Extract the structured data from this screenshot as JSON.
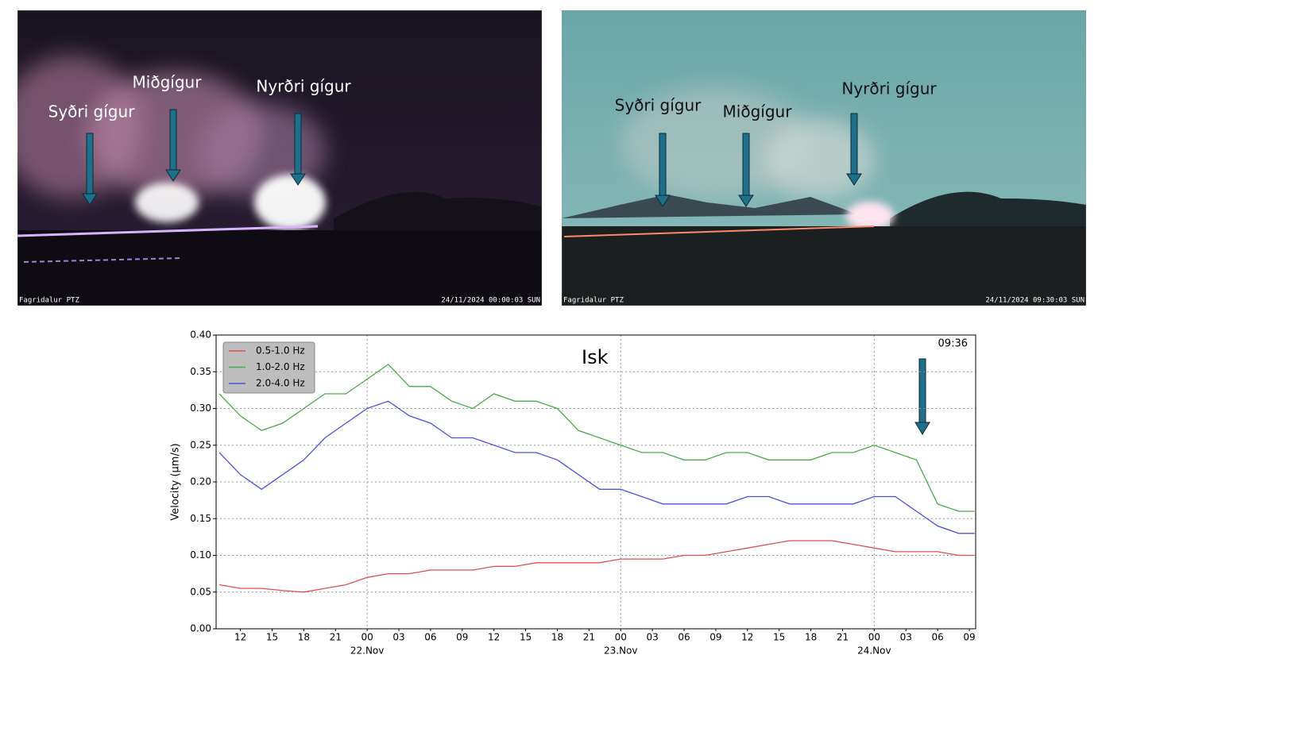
{
  "images": [
    {
      "labels": [
        "Syðri gígur",
        "Miðgígur",
        "Nyrðri gígur"
      ],
      "camera": "Fagridalur PTZ",
      "timestamp": "24/11/2024 00:00:03 SUN"
    },
    {
      "labels": [
        "Syðri gígur",
        "Miðgígur",
        "Nyrðri gígur"
      ],
      "camera": "Fagridalur PTZ",
      "timestamp": "24/11/2024 09:30:03 SUN"
    }
  ],
  "chart_data": {
    "type": "line",
    "title": "Isk",
    "annotation": "09:36",
    "y_label": "Velocity (μm/s)",
    "x": [
      10,
      12,
      14,
      16,
      18,
      20,
      22,
      24,
      26,
      28,
      30,
      32,
      34,
      36,
      38,
      40,
      42,
      44,
      46,
      48,
      50,
      52,
      54,
      56,
      58,
      60,
      62,
      64,
      66,
      68,
      70,
      72,
      74,
      76,
      78,
      80,
      81.5
    ],
    "series": [
      {
        "name": "0.5-1.0 Hz",
        "color": "#e05050",
        "values": [
          0.06,
          0.055,
          0.055,
          0.052,
          0.05,
          0.055,
          0.06,
          0.07,
          0.075,
          0.075,
          0.08,
          0.08,
          0.08,
          0.085,
          0.085,
          0.09,
          0.09,
          0.09,
          0.09,
          0.095,
          0.095,
          0.095,
          0.1,
          0.1,
          0.105,
          0.11,
          0.115,
          0.12,
          0.12,
          0.12,
          0.115,
          0.11,
          0.105,
          0.105,
          0.105,
          0.1,
          0.1
        ]
      },
      {
        "name": "1.0-2.0 Hz",
        "color": "#4caa4c",
        "values": [
          0.32,
          0.29,
          0.27,
          0.28,
          0.3,
          0.32,
          0.32,
          0.34,
          0.36,
          0.33,
          0.33,
          0.31,
          0.3,
          0.32,
          0.31,
          0.31,
          0.3,
          0.27,
          0.26,
          0.25,
          0.24,
          0.24,
          0.23,
          0.23,
          0.24,
          0.24,
          0.23,
          0.23,
          0.23,
          0.24,
          0.24,
          0.25,
          0.24,
          0.23,
          0.17,
          0.16,
          0.16
        ]
      },
      {
        "name": "2.0-4.0 Hz",
        "color": "#5050e0",
        "values": [
          0.24,
          0.21,
          0.19,
          0.21,
          0.23,
          0.26,
          0.28,
          0.3,
          0.31,
          0.29,
          0.28,
          0.26,
          0.26,
          0.25,
          0.24,
          0.24,
          0.23,
          0.21,
          0.19,
          0.19,
          0.18,
          0.17,
          0.17,
          0.17,
          0.17,
          0.18,
          0.18,
          0.17,
          0.17,
          0.17,
          0.17,
          0.18,
          0.18,
          0.16,
          0.14,
          0.13,
          0.13
        ]
      }
    ],
    "xlim": [
      9.7,
      81.6
    ],
    "xticks": [
      12,
      15,
      18,
      21,
      {
        "value": 24,
        "label": "00"
      },
      {
        "value": 27,
        "label": "03"
      },
      {
        "value": 30,
        "label": "06"
      },
      {
        "value": 33,
        "label": "09"
      },
      {
        "value": 36,
        "label": "12"
      },
      {
        "value": 39,
        "label": "15"
      },
      {
        "value": 42,
        "label": "18"
      },
      {
        "value": 45,
        "label": "21"
      },
      {
        "value": 48,
        "label": "00"
      },
      {
        "value": 51,
        "label": "03"
      },
      {
        "value": 54,
        "label": "06"
      },
      {
        "value": 57,
        "label": "09"
      },
      {
        "value": 60,
        "label": "12"
      },
      {
        "value": 63,
        "label": "15"
      },
      {
        "value": 66,
        "label": "18"
      },
      {
        "value": 69,
        "label": "21"
      },
      {
        "value": 72,
        "label": "00"
      },
      {
        "value": 75,
        "label": "03"
      },
      {
        "value": 78,
        "label": "06"
      },
      {
        "value": 81,
        "label": "09"
      }
    ],
    "xdaylabels": [
      {
        "value": 24,
        "label": "22.Nov"
      },
      {
        "value": 48,
        "label": "23.Nov"
      },
      {
        "value": 72,
        "label": "24.Nov"
      }
    ],
    "ylim": [
      0,
      0.4
    ],
    "yticks": [
      {
        "value": 0,
        "label": "0.00"
      },
      {
        "value": 0.05,
        "label": "0.05"
      },
      {
        "value": 0.1,
        "label": "0.10"
      },
      {
        "value": 0.15,
        "label": "0.15"
      },
      {
        "value": 0.2,
        "label": "0.20"
      },
      {
        "value": 0.25,
        "label": "0.25"
      },
      {
        "value": 0.3,
        "label": "0.30"
      },
      {
        "value": 0.35,
        "label": "0.35"
      },
      {
        "value": 0.4,
        "label": "0.40"
      }
    ],
    "grid": true,
    "legend": "upper-left"
  }
}
